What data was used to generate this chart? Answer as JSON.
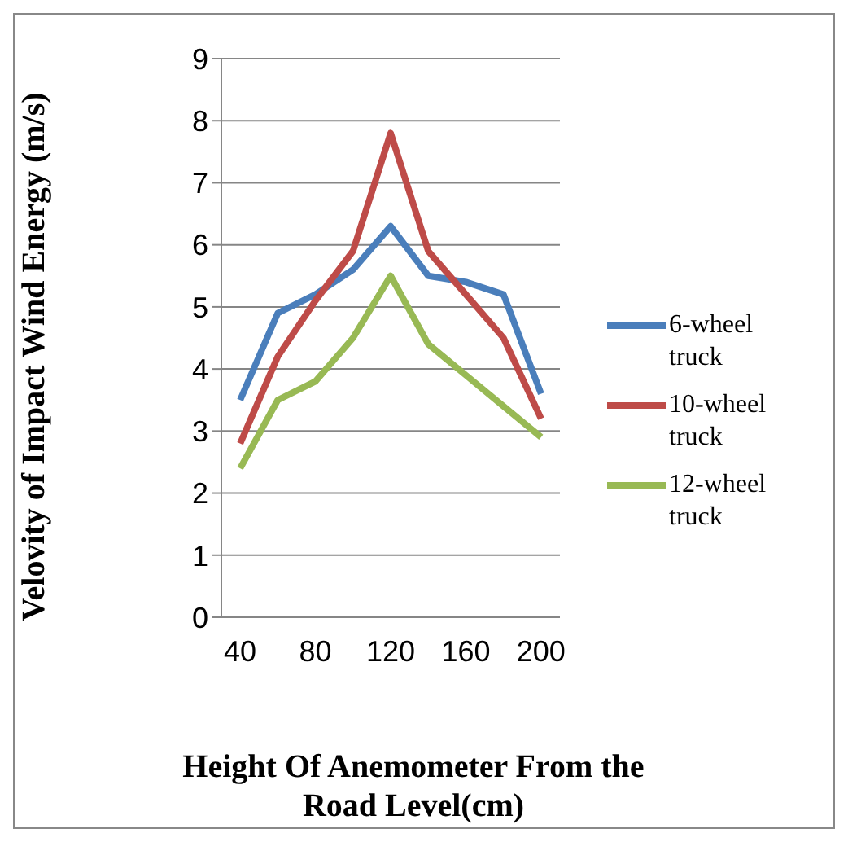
{
  "chart_data": {
    "type": "line",
    "xlabel": "Height Of Anemometer From the Road Level(cm)",
    "ylabel": "Velovity of Impact Wind Energy (m/s)",
    "x": [
      40,
      60,
      80,
      100,
      120,
      140,
      160,
      180,
      200
    ],
    "series": [
      {
        "name": "6-wheel truck",
        "color": "#4a7ebb",
        "values": [
          3.5,
          4.9,
          5.2,
          5.6,
          6.3,
          5.5,
          5.4,
          5.2,
          3.6
        ]
      },
      {
        "name": "10-wheel truck",
        "color": "#be4b48",
        "values": [
          2.8,
          4.2,
          5.1,
          5.9,
          7.8,
          5.9,
          5.2,
          4.5,
          3.2
        ]
      },
      {
        "name": "12-wheel truck",
        "color": "#98b954",
        "values": [
          2.4,
          3.5,
          3.8,
          4.5,
          5.5,
          4.4,
          3.9,
          3.4,
          2.9
        ]
      }
    ],
    "xlim": [
      30,
      210
    ],
    "xticks": [
      40,
      80,
      120,
      160,
      200
    ],
    "ylim": [
      0,
      9
    ],
    "yticks": [
      0,
      1,
      2,
      3,
      4,
      5,
      6,
      7,
      8,
      9
    ],
    "grid": "y",
    "legend": "right",
    "marker": "none",
    "line_style": "solid"
  }
}
